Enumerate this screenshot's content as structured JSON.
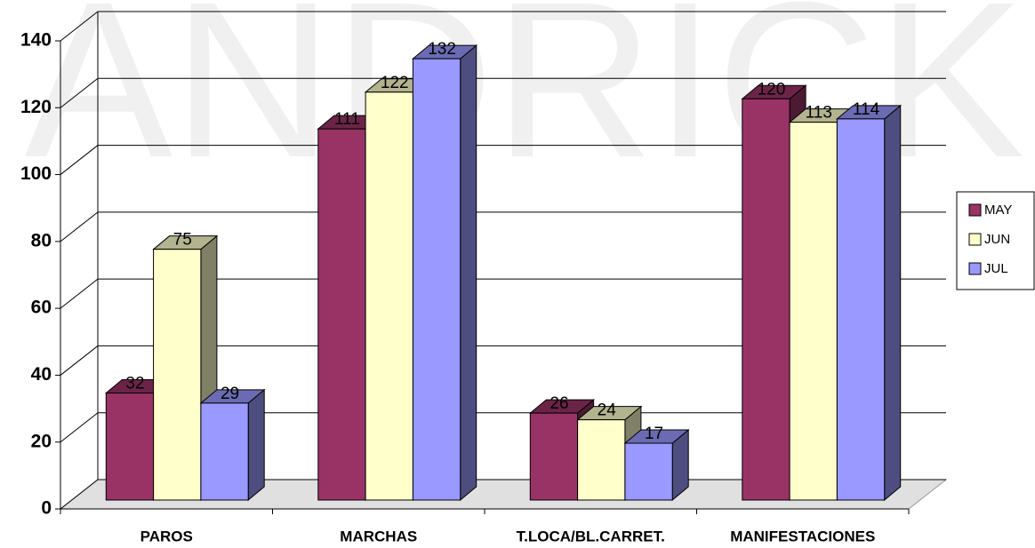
{
  "watermark": "ANDRICK",
  "chart_data": {
    "type": "bar3d",
    "categories": [
      "PAROS",
      "MARCHAS",
      "T.LOCA/BL.CARRET.",
      "MANIFESTACIONES"
    ],
    "series": [
      {
        "name": "MAY",
        "color": "#993366",
        "values": [
          32,
          111,
          26,
          120
        ]
      },
      {
        "name": "JUN",
        "color": "#ffffcc",
        "values": [
          75,
          122,
          24,
          113
        ]
      },
      {
        "name": "JUL",
        "color": "#9999ff",
        "values": [
          29,
          132,
          17,
          114
        ]
      }
    ],
    "ylim": [
      0,
      140
    ],
    "yticks": [
      0,
      20,
      40,
      60,
      80,
      100,
      120,
      140
    ],
    "grid": true,
    "legend": "right"
  }
}
